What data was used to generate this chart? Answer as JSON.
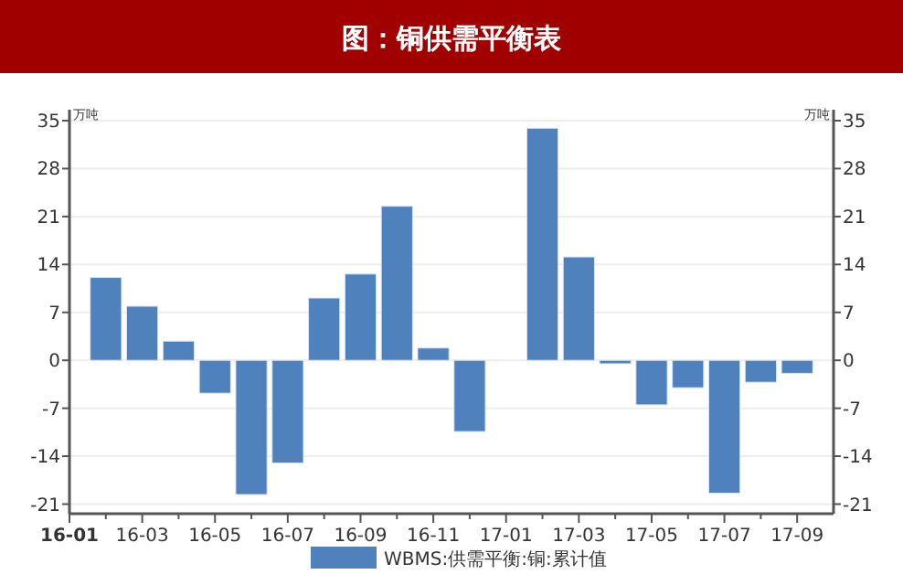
{
  "chart_data": {
    "type": "bar",
    "title": "图：铜供需平衡表",
    "ylabel": "万吨",
    "y2label": "万吨",
    "categories": [
      "16-01",
      null,
      "16-03",
      null,
      "16-05",
      null,
      "16-07",
      null,
      "16-09",
      null,
      "16-11",
      null,
      "17-01",
      null,
      "17-03",
      null,
      "17-05",
      null,
      "17-07",
      null,
      "17-09"
    ],
    "series": [
      {
        "name": "WBMS:供需平衡:铜:累计值",
        "color": "#4f81bd",
        "values": [
          null,
          12.1,
          7.9,
          2.8,
          -4.8,
          -19.6,
          -15.0,
          9.1,
          12.6,
          22.5,
          1.8,
          -10.4,
          null,
          33.9,
          15.1,
          -0.5,
          -6.5,
          -4.0,
          -19.4,
          -3.2,
          -1.9
        ]
      }
    ],
    "ylim": [
      -22.4,
      35
    ],
    "yticks": [
      -21,
      -14,
      -7,
      0,
      7,
      14,
      21,
      28,
      35
    ],
    "y2lim": [
      -22.4,
      35
    ],
    "y2ticks": [
      -21,
      -14,
      -7,
      0,
      7,
      14,
      21,
      28,
      35
    ],
    "grid": "y",
    "legend": "bottom"
  }
}
